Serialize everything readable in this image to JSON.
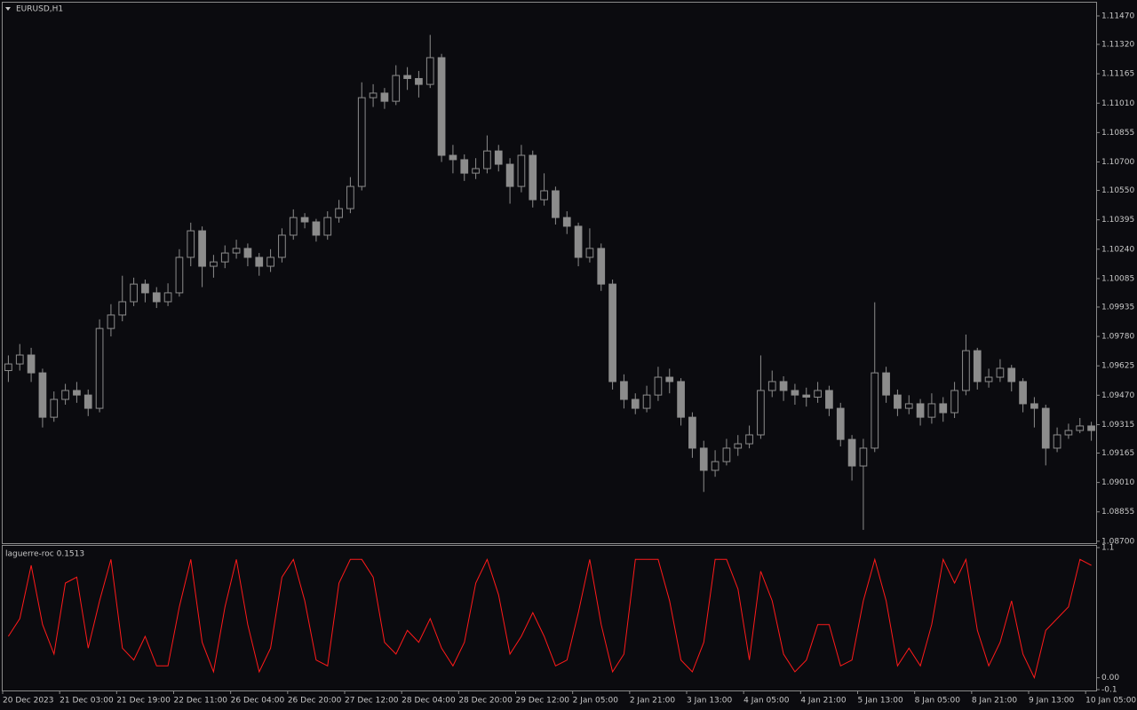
{
  "chart_data": [
    {
      "type": "candlestick",
      "title": "EURUSD,H1",
      "color": "#8c8c8c",
      "categories": [
        "20 Dec 2023",
        null,
        null,
        null,
        null,
        "21 Dec 03:00",
        null,
        null,
        null,
        null,
        "21 Dec 19:00",
        null,
        null,
        null,
        null,
        "22 Dec 11:00",
        null,
        null,
        null,
        null,
        "26 Dec 04:00",
        null,
        null,
        null,
        null,
        "26 Dec 20:00",
        null,
        null,
        null,
        null,
        "27 Dec 12:00",
        null,
        null,
        null,
        null,
        "28 Dec 04:00",
        null,
        null,
        null,
        null,
        "28 Dec 20:00",
        null,
        null,
        null,
        null,
        "29 Dec 12:00",
        null,
        null,
        null,
        null,
        "2 Jan 05:00",
        null,
        null,
        null,
        null,
        "2 Jan 21:00",
        null,
        null,
        null,
        null,
        "3 Jan 13:00",
        null,
        null,
        null,
        null,
        "4 Jan 05:00",
        null,
        null,
        null,
        null,
        "4 Jan 21:00",
        null,
        null,
        null,
        null,
        "5 Jan 13:00",
        null,
        null,
        null,
        null,
        "8 Jan 05:00",
        null,
        null,
        null,
        null,
        "8 Jan 21:00",
        null,
        null,
        null,
        null,
        "9 Jan 13:00",
        null,
        null,
        null,
        null,
        "10 Jan 05:00"
      ],
      "open": [
        1.096,
        1.09635,
        1.09682,
        1.09588,
        1.09354,
        1.09448,
        1.09495,
        1.09471,
        1.09401,
        1.09822,
        1.09893,
        1.09963,
        1.10056,
        1.1001,
        1.09963,
        1.1001,
        1.10197,
        1.10337,
        1.1015,
        1.10173,
        1.1022,
        1.10244,
        1.10197,
        1.1015,
        1.10197,
        1.10314,
        1.10407,
        1.10384,
        1.10314,
        1.10407,
        1.10454,
        1.10571,
        1.11039,
        1.11063,
        1.1102,
        1.11156,
        1.1114,
        1.11109,
        1.1125,
        1.10735,
        1.10712,
        1.10641,
        1.10665,
        1.10758,
        1.10688,
        1.10571,
        1.10735,
        1.10501,
        1.10548,
        1.10407,
        1.10361,
        1.10197,
        1.10244,
        1.10056,
        1.09542,
        1.09448,
        1.09401,
        1.09471,
        1.09565,
        1.09542,
        1.09354,
        1.09191,
        1.09074,
        1.0912,
        1.09191,
        1.09214,
        1.09261,
        1.09495,
        1.09542,
        1.09495,
        1.09471,
        1.0946,
        1.09495,
        1.09401,
        1.09237,
        1.09097,
        1.09191,
        1.09588,
        1.09471,
        1.09401,
        1.09425,
        1.09354,
        1.09425,
        1.09378,
        1.09495,
        1.09705,
        1.09542,
        1.09565,
        1.09612,
        1.09542,
        1.09425,
        1.09401,
        1.09191,
        1.09261,
        1.09284,
        1.09308
      ],
      "high": [
        1.0968,
        1.0974,
        1.0972,
        1.0961,
        1.0949,
        1.0953,
        1.0954,
        1.095,
        1.0987,
        1.0995,
        1.101,
        1.1009,
        1.1008,
        1.1004,
        1.1006,
        1.1024,
        1.1038,
        1.1036,
        1.1021,
        1.1026,
        1.1029,
        1.1027,
        1.1022,
        1.1024,
        1.1035,
        1.1045,
        1.1043,
        1.104,
        1.1044,
        1.105,
        1.1062,
        1.1112,
        1.1111,
        1.1109,
        1.1121,
        1.112,
        1.1118,
        1.1137,
        1.1127,
        1.1079,
        1.1074,
        1.1072,
        1.1084,
        1.1079,
        1.1072,
        1.1079,
        1.1076,
        1.1064,
        1.1057,
        1.1044,
        1.1038,
        1.1035,
        1.1027,
        1.1008,
        1.0958,
        1.0948,
        1.0952,
        1.0962,
        1.0961,
        1.0956,
        1.0938,
        1.0923,
        1.0918,
        1.0924,
        1.0926,
        1.0931,
        1.0968,
        1.096,
        1.0957,
        1.0953,
        1.0951,
        1.0954,
        1.0952,
        1.0943,
        1.0926,
        1.0924,
        1.0996,
        1.0962,
        1.095,
        1.0947,
        1.0945,
        1.0948,
        1.0946,
        1.0954,
        1.0979,
        1.0972,
        1.0961,
        1.0966,
        1.0963,
        1.0956,
        1.0946,
        1.0942,
        1.093,
        1.0932,
        1.0935,
        1.0933
      ],
      "low": [
        1.0954,
        1.096,
        1.0954,
        1.093,
        1.0933,
        1.0942,
        1.0943,
        1.0936,
        1.0938,
        1.0978,
        1.0986,
        1.0994,
        1.0996,
        1.0993,
        1.0994,
        1.0999,
        1.1015,
        1.1004,
        1.1009,
        1.1014,
        1.1019,
        1.1015,
        1.101,
        1.1012,
        1.1017,
        1.1029,
        1.1035,
        1.1028,
        1.1029,
        1.1038,
        1.1043,
        1.1055,
        1.1099,
        1.1098,
        1.11,
        1.1108,
        1.1104,
        1.1109,
        1.107,
        1.1064,
        1.106,
        1.1061,
        1.1064,
        1.1065,
        1.1048,
        1.1054,
        1.1046,
        1.1047,
        1.1037,
        1.1032,
        1.1015,
        1.1017,
        1.1002,
        1.095,
        1.094,
        1.0937,
        1.0938,
        1.0944,
        1.0948,
        1.0931,
        1.0914,
        1.0896,
        1.0904,
        1.091,
        1.0915,
        1.0919,
        1.0924,
        1.0946,
        1.0944,
        1.0942,
        1.0941,
        1.0943,
        1.0936,
        1.092,
        1.0902,
        1.0876,
        1.0917,
        1.0943,
        1.0936,
        1.0937,
        1.0931,
        1.0932,
        1.0933,
        1.0935,
        1.0947,
        1.095,
        1.0951,
        1.0954,
        1.0949,
        1.0938,
        1.093,
        1.091,
        1.0917,
        1.0924,
        1.0927,
        1.0923
      ],
      "close": [
        1.09635,
        1.09682,
        1.09588,
        1.09354,
        1.09448,
        1.09495,
        1.09471,
        1.09401,
        1.09822,
        1.09893,
        1.09963,
        1.10056,
        1.1001,
        1.09963,
        1.1001,
        1.10197,
        1.10337,
        1.1015,
        1.10173,
        1.1022,
        1.10244,
        1.10197,
        1.1015,
        1.10197,
        1.10314,
        1.10407,
        1.10384,
        1.10314,
        1.10407,
        1.10454,
        1.10571,
        1.11039,
        1.11063,
        1.1102,
        1.11156,
        1.1114,
        1.11109,
        1.1125,
        1.10735,
        1.10712,
        1.10641,
        1.10665,
        1.10758,
        1.10688,
        1.10571,
        1.10735,
        1.10501,
        1.10548,
        1.10407,
        1.10361,
        1.10197,
        1.10244,
        1.10056,
        1.09542,
        1.09448,
        1.09401,
        1.09471,
        1.09565,
        1.09542,
        1.09354,
        1.09191,
        1.09074,
        1.0912,
        1.09191,
        1.09214,
        1.09261,
        1.09495,
        1.09542,
        1.09495,
        1.09471,
        1.0946,
        1.09495,
        1.09401,
        1.09237,
        1.09097,
        1.09191,
        1.09588,
        1.09471,
        1.09401,
        1.09425,
        1.09354,
        1.09425,
        1.09378,
        1.09495,
        1.09705,
        1.09542,
        1.09565,
        1.09612,
        1.09542,
        1.09425,
        1.09401,
        1.09191,
        1.09261,
        1.09284,
        1.09308,
        1.09284
      ],
      "ylim": [
        1.0869,
        1.1154
      ],
      "yticks": [
        {
          "value": 1.1147,
          "label": "1.11470"
        },
        {
          "value": 1.1132,
          "label": "1.11320"
        },
        1.11165,
        {
          "value": 1.1101,
          "label": "1.11010"
        },
        1.10855,
        {
          "value": 1.107,
          "label": "1.10700"
        },
        {
          "value": 1.1055,
          "label": "1.10550"
        },
        1.10395,
        {
          "value": 1.1024,
          "label": "1.10240"
        },
        1.10085,
        1.09935,
        {
          "value": 1.0978,
          "label": "1.09780"
        },
        1.09625,
        {
          "value": 1.0947,
          "label": "1.09470"
        },
        1.09315,
        1.09165,
        {
          "value": 1.0901,
          "label": "1.09010"
        },
        1.08855,
        {
          "value": 1.087,
          "label": "1.08700"
        }
      ]
    },
    {
      "type": "line",
      "title": "laguerre-roc 0.1513",
      "color": "#ff1a1a",
      "values": [
        0.35,
        0.5,
        0.95,
        0.45,
        0.2,
        0.8,
        0.85,
        0.25,
        0.65,
        1,
        0.25,
        0.15,
        0.35,
        0.1,
        0.1,
        0.6,
        1,
        0.3,
        0.05,
        0.6,
        1,
        0.45,
        0.05,
        0.25,
        0.85,
        1,
        0.65,
        0.15,
        0.1,
        0.8,
        1,
        1,
        0.85,
        0.3,
        0.2,
        0.4,
        0.3,
        0.5,
        0.25,
        0.1,
        0.3,
        0.8,
        1,
        0.7,
        0.2,
        0.35,
        0.55,
        0.35,
        0.1,
        0.15,
        0.55,
        1,
        0.45,
        0.05,
        0.2,
        1,
        1,
        1,
        0.65,
        0.15,
        0.05,
        0.3,
        1,
        1,
        0.75,
        0.15,
        0.9,
        0.65,
        0.2,
        0.05,
        0.15,
        0.45,
        0.45,
        0.1,
        0.15,
        0.65,
        1,
        0.65,
        0.1,
        0.25,
        0.1,
        0.45,
        1,
        0.8,
        1,
        0.4,
        0.1,
        0.3,
        0.65,
        0.2,
        0,
        0.4,
        0.5,
        0.6,
        1,
        0.95
      ],
      "ylim": [
        -0.1,
        1.1
      ],
      "yticks": [
        1.1,
        {
          "value": 0,
          "label": "0.00"
        },
        -0.1
      ]
    }
  ]
}
